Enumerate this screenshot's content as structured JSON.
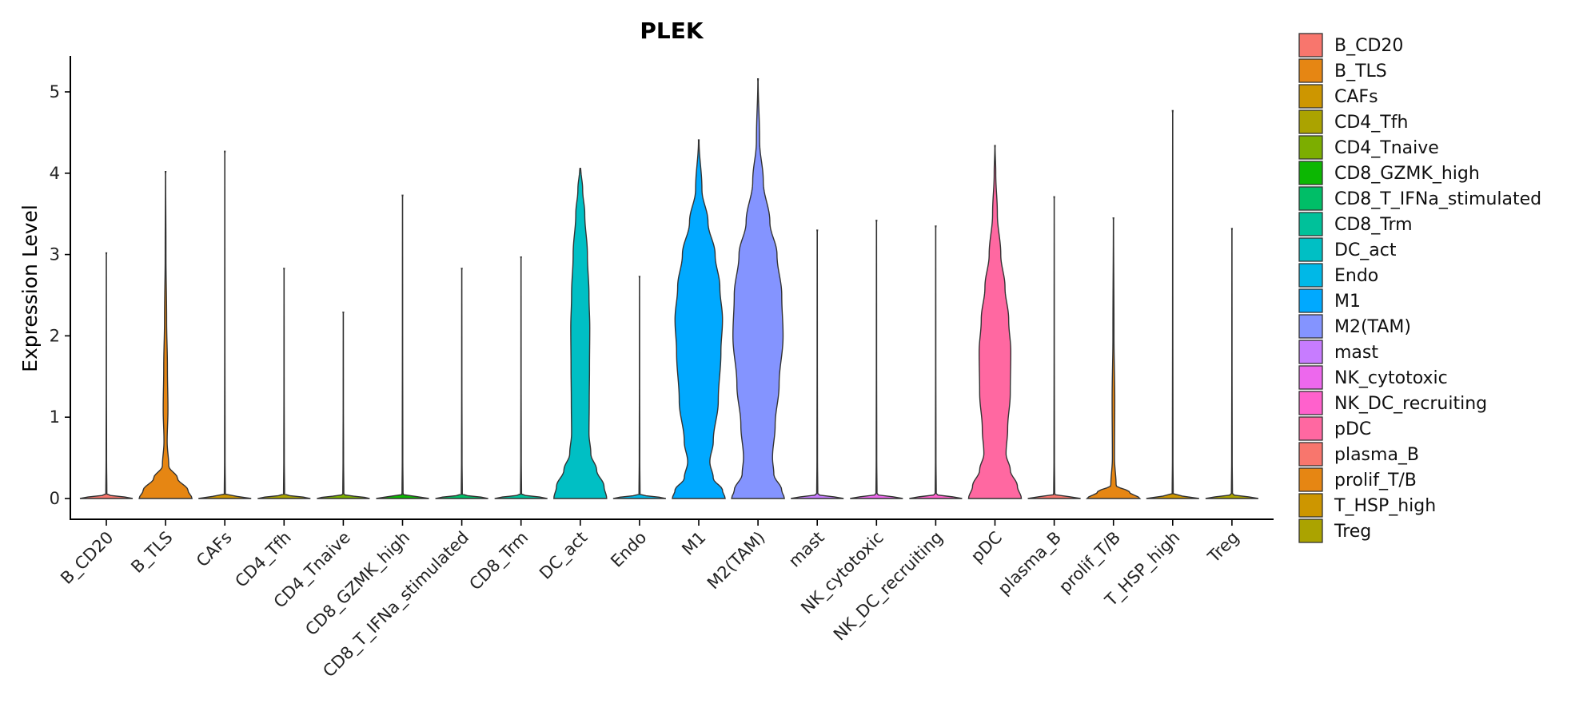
{
  "chart_data": {
    "type": "violin",
    "title": "PLEK",
    "xlabel": "",
    "ylabel": "Expression Level",
    "ylim": [
      -0.25,
      5.42
    ],
    "yticks": [
      0,
      1,
      2,
      3,
      4,
      5
    ],
    "ytick_labels": [
      "0",
      "1",
      "2",
      "3",
      "4",
      "5"
    ],
    "grid": false,
    "legend_position": "right",
    "categories": [
      "B_CD20",
      "B_TLS",
      "CAFs",
      "CD4_Tfh",
      "CD4_Tnaive",
      "CD8_GZMK_high",
      "CD8_T_IFNa_stimulated",
      "CD8_Trm",
      "DC_act",
      "Endo",
      "M1",
      "M2(TAM)",
      "mast",
      "NK_cytotoxic",
      "NK_DC_recruiting",
      "pDC",
      "plasma_B",
      "prolif_T/B",
      "T_HSP_high",
      "Treg"
    ],
    "colors": [
      "#F8766D",
      "#E58700",
      "#C99800",
      "#A3A500",
      "#6BB100",
      "#00BA38",
      "#00BF7D",
      "#00C0AF",
      "#00BCD8",
      "#00B0F6",
      "#619CFF",
      "#B983FF",
      "#E76BF3",
      "#FD61D1",
      "#FF67A4",
      "#F8766D",
      "#E58700",
      "#C99800",
      "#A3A500",
      "#6BB100"
    ],
    "violin_colors": [
      "#F8766D",
      "#E68613",
      "#CD9600",
      "#ABA300",
      "#7CAE00",
      "#0CB702",
      "#00BE67",
      "#00C19A",
      "#00BFC4",
      "#00B8E7",
      "#00A9FF",
      "#8494FF",
      "#C77CFF",
      "#ED68ED",
      "#FF61CC",
      "#FF68A1",
      "#F8766D",
      "#E68613",
      "#CD9600",
      "#ABA300"
    ],
    "series": [
      {
        "name": "B_CD20",
        "max": 3.02,
        "profile": [
          [
            0,
            1.0
          ],
          [
            0.05,
            0.02
          ],
          [
            0.5,
            0.01
          ],
          [
            1.5,
            0.005
          ],
          [
            3.02,
            0.003
          ]
        ]
      },
      {
        "name": "B_TLS",
        "max": 4.02,
        "profile": [
          [
            0,
            1.0
          ],
          [
            0.1,
            0.85
          ],
          [
            0.25,
            0.45
          ],
          [
            0.4,
            0.12
          ],
          [
            0.7,
            0.06
          ],
          [
            1.1,
            0.09
          ],
          [
            1.6,
            0.07
          ],
          [
            2.2,
            0.04
          ],
          [
            3.0,
            0.015
          ],
          [
            4.02,
            0.004
          ]
        ]
      },
      {
        "name": "CAFs",
        "max": 4.27,
        "profile": [
          [
            0,
            1.0
          ],
          [
            0.05,
            0.02
          ],
          [
            0.5,
            0.01
          ],
          [
            2.0,
            0.005
          ],
          [
            4.27,
            0.003
          ]
        ]
      },
      {
        "name": "CD4_Tfh",
        "max": 2.83,
        "profile": [
          [
            0,
            1.0
          ],
          [
            0.05,
            0.02
          ],
          [
            0.5,
            0.01
          ],
          [
            1.5,
            0.005
          ],
          [
            2.83,
            0.003
          ]
        ]
      },
      {
        "name": "CD4_Tnaive",
        "max": 2.29,
        "profile": [
          [
            0,
            1.0
          ],
          [
            0.05,
            0.02
          ],
          [
            0.5,
            0.01
          ],
          [
            1.2,
            0.005
          ],
          [
            2.29,
            0.003
          ]
        ]
      },
      {
        "name": "CD8_GZMK_high",
        "max": 3.73,
        "profile": [
          [
            0,
            1.0
          ],
          [
            0.05,
            0.02
          ],
          [
            0.5,
            0.01
          ],
          [
            2.0,
            0.005
          ],
          [
            3.73,
            0.003
          ]
        ]
      },
      {
        "name": "CD8_T_IFNa_stimulated",
        "max": 2.83,
        "profile": [
          [
            0,
            1.0
          ],
          [
            0.05,
            0.02
          ],
          [
            0.5,
            0.01
          ],
          [
            1.5,
            0.005
          ],
          [
            2.83,
            0.003
          ]
        ]
      },
      {
        "name": "CD8_Trm",
        "max": 2.97,
        "profile": [
          [
            0,
            1.0
          ],
          [
            0.05,
            0.02
          ],
          [
            0.5,
            0.01
          ],
          [
            1.5,
            0.005
          ],
          [
            2.97,
            0.003
          ]
        ]
      },
      {
        "name": "DC_act",
        "max": 4.06,
        "profile": [
          [
            0,
            1.0
          ],
          [
            0.15,
            0.9
          ],
          [
            0.35,
            0.62
          ],
          [
            0.55,
            0.4
          ],
          [
            0.8,
            0.33
          ],
          [
            1.2,
            0.34
          ],
          [
            1.6,
            0.35
          ],
          [
            2.1,
            0.36
          ],
          [
            2.5,
            0.33
          ],
          [
            3.0,
            0.27
          ],
          [
            3.5,
            0.17
          ],
          [
            3.8,
            0.09
          ],
          [
            4.06,
            0.02
          ]
        ]
      },
      {
        "name": "Endo",
        "max": 2.73,
        "profile": [
          [
            0,
            1.0
          ],
          [
            0.05,
            0.02
          ],
          [
            0.5,
            0.01
          ],
          [
            1.5,
            0.005
          ],
          [
            2.73,
            0.003
          ]
        ]
      },
      {
        "name": "M1",
        "max": 4.41,
        "profile": [
          [
            0,
            1.0
          ],
          [
            0.1,
            0.9
          ],
          [
            0.25,
            0.55
          ],
          [
            0.45,
            0.42
          ],
          [
            0.7,
            0.55
          ],
          [
            1.2,
            0.74
          ],
          [
            1.8,
            0.84
          ],
          [
            2.2,
            0.9
          ],
          [
            2.6,
            0.8
          ],
          [
            3.0,
            0.62
          ],
          [
            3.4,
            0.35
          ],
          [
            3.8,
            0.12
          ],
          [
            4.41,
            0.01
          ]
        ]
      },
      {
        "name": "M2(TAM)",
        "max": 5.16,
        "profile": [
          [
            0,
            1.0
          ],
          [
            0.1,
            0.9
          ],
          [
            0.3,
            0.6
          ],
          [
            0.5,
            0.55
          ],
          [
            0.9,
            0.65
          ],
          [
            1.4,
            0.8
          ],
          [
            2.0,
            0.95
          ],
          [
            2.5,
            0.9
          ],
          [
            3.0,
            0.72
          ],
          [
            3.4,
            0.45
          ],
          [
            3.9,
            0.2
          ],
          [
            4.4,
            0.06
          ],
          [
            5.16,
            0.005
          ]
        ]
      },
      {
        "name": "mast",
        "max": 3.3,
        "profile": [
          [
            0,
            1.0
          ],
          [
            0.05,
            0.02
          ],
          [
            0.5,
            0.01
          ],
          [
            1.8,
            0.005
          ],
          [
            3.3,
            0.003
          ]
        ]
      },
      {
        "name": "NK_cytotoxic",
        "max": 3.42,
        "profile": [
          [
            0,
            1.0
          ],
          [
            0.05,
            0.02
          ],
          [
            0.5,
            0.01
          ],
          [
            1.8,
            0.005
          ],
          [
            3.42,
            0.003
          ]
        ]
      },
      {
        "name": "NK_DC_recruiting",
        "max": 3.35,
        "profile": [
          [
            0,
            1.0
          ],
          [
            0.05,
            0.02
          ],
          [
            0.5,
            0.01
          ],
          [
            1.8,
            0.005
          ],
          [
            3.35,
            0.003
          ]
        ]
      },
      {
        "name": "pDC",
        "max": 4.34,
        "profile": [
          [
            0,
            1.0
          ],
          [
            0.15,
            0.85
          ],
          [
            0.35,
            0.58
          ],
          [
            0.55,
            0.42
          ],
          [
            0.85,
            0.48
          ],
          [
            1.3,
            0.58
          ],
          [
            1.8,
            0.6
          ],
          [
            2.2,
            0.52
          ],
          [
            2.6,
            0.38
          ],
          [
            3.0,
            0.22
          ],
          [
            3.5,
            0.09
          ],
          [
            4.0,
            0.03
          ],
          [
            4.34,
            0.005
          ]
        ]
      },
      {
        "name": "plasma_B",
        "max": 3.71,
        "profile": [
          [
            0,
            1.0
          ],
          [
            0.05,
            0.02
          ],
          [
            0.5,
            0.01
          ],
          [
            2.0,
            0.005
          ],
          [
            3.71,
            0.003
          ]
        ]
      },
      {
        "name": "prolif_T/B",
        "max": 3.45,
        "profile": [
          [
            0,
            1.0
          ],
          [
            0.08,
            0.6
          ],
          [
            0.16,
            0.1
          ],
          [
            0.5,
            0.04
          ],
          [
            1.2,
            0.05
          ],
          [
            2.0,
            0.02
          ],
          [
            3.45,
            0.004
          ]
        ]
      },
      {
        "name": "T_HSP_high",
        "max": 4.77,
        "profile": [
          [
            0,
            1.0
          ],
          [
            0.05,
            0.02
          ],
          [
            0.5,
            0.01
          ],
          [
            2.5,
            0.005
          ],
          [
            4.77,
            0.003
          ]
        ]
      },
      {
        "name": "Treg",
        "max": 3.32,
        "profile": [
          [
            0,
            1.0
          ],
          [
            0.05,
            0.02
          ],
          [
            0.5,
            0.01
          ],
          [
            1.8,
            0.005
          ],
          [
            3.32,
            0.003
          ]
        ]
      }
    ],
    "legend": [
      "B_CD20",
      "B_TLS",
      "CAFs",
      "CD4_Tfh",
      "CD4_Tnaive",
      "CD8_GZMK_high",
      "CD8_T_IFNa_stimulated",
      "CD8_Trm",
      "DC_act",
      "Endo",
      "M1",
      "M2(TAM)",
      "mast",
      "NK_cytotoxic",
      "NK_DC_recruiting",
      "pDC",
      "plasma_B",
      "prolif_T/B",
      "T_HSP_high",
      "Treg"
    ]
  }
}
